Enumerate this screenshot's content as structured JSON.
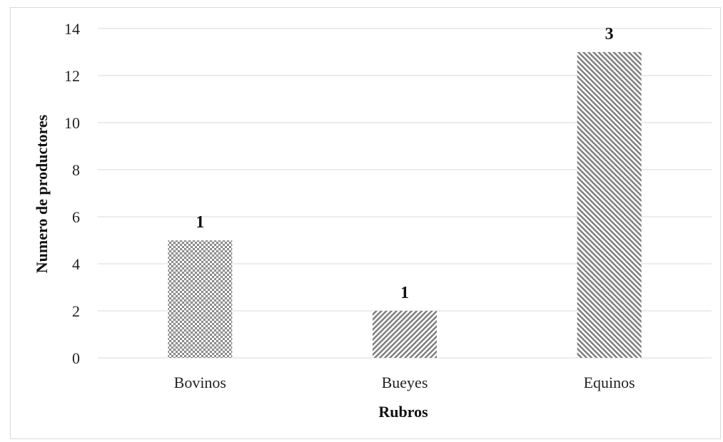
{
  "chart_data": {
    "type": "bar",
    "categories": [
      "Bovinos",
      "Bueyes",
      "Equinos"
    ],
    "values": [
      5,
      2,
      13
    ],
    "data_labels": [
      "1",
      "1",
      "3"
    ],
    "title": "",
    "xlabel": "Rubros",
    "ylabel": "Numero de productores",
    "ylim": [
      0,
      14
    ],
    "yticks": [
      "0",
      "2",
      "4",
      "6",
      "8",
      "10",
      "12",
      "14"
    ],
    "grid": true,
    "legend": "none",
    "bar_patterns": [
      "checker",
      "diagonal-left",
      "diagonal-right"
    ],
    "colors": {
      "bar_pattern": "#7f7f7f",
      "grid": "#d9d9d9",
      "text": "#111111"
    }
  }
}
